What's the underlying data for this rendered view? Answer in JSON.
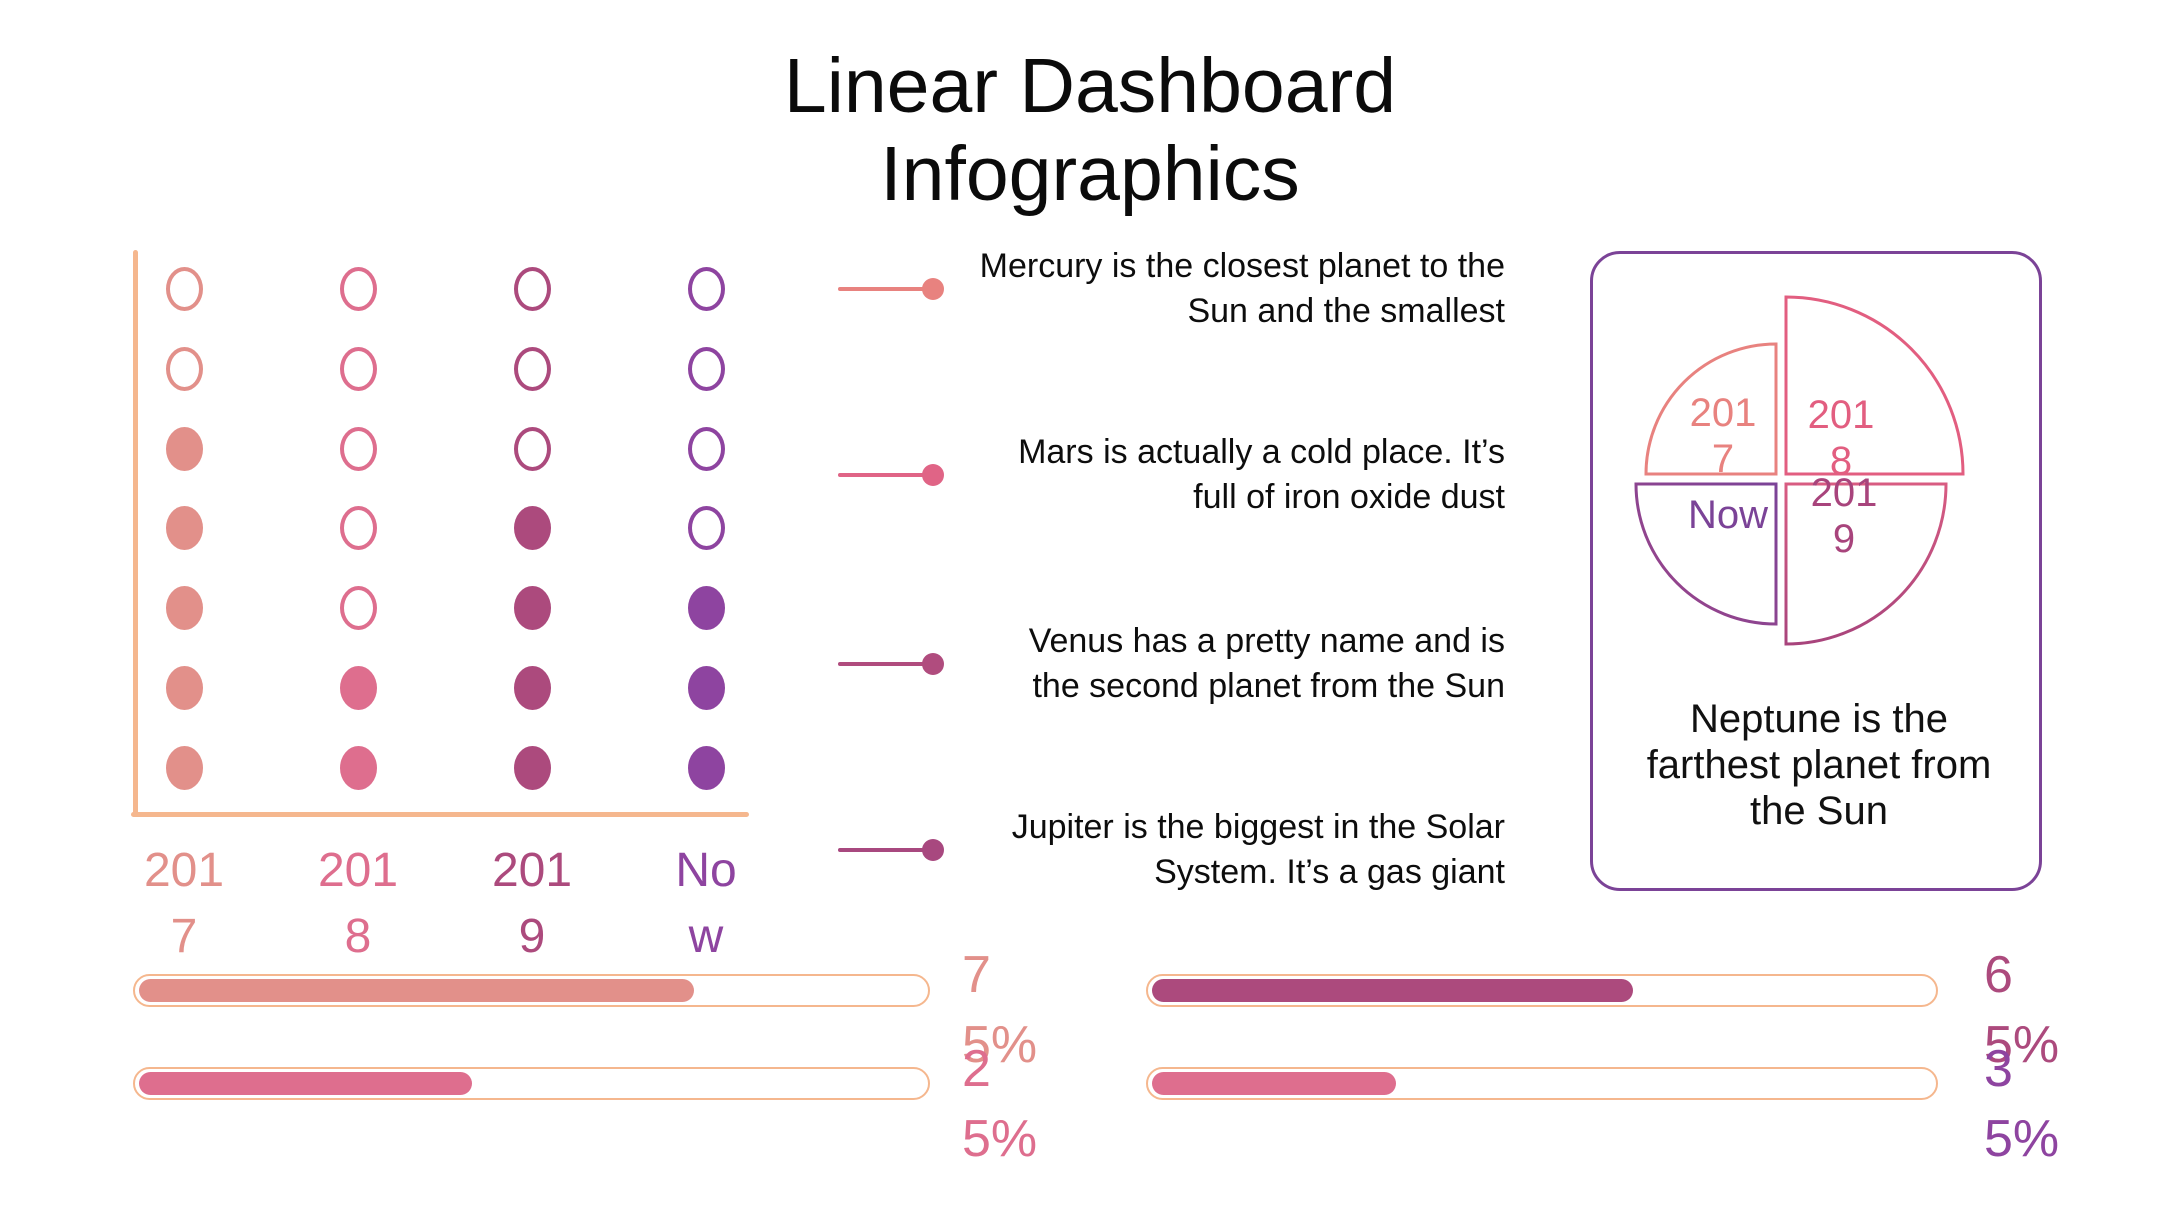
{
  "title": "Linear Dashboard Infographics",
  "colors": {
    "salmon": "#E2908A",
    "pink": "#DE6E8E",
    "magenta": "#AC4A7D",
    "purple": "#8E44A0",
    "peach_axis": "#F5B78E",
    "card_border": "#7B4397",
    "text": "#111111"
  },
  "chart_data": [
    {
      "type": "scatter",
      "subtype": "dot-matrix",
      "categories": [
        "2017",
        "2018",
        "2019",
        "Now"
      ],
      "values": [
        5,
        2,
        4,
        3
      ],
      "max_dots": 7,
      "filled_from_bottom": true,
      "pattern_top_to_bottom": [
        [
          0,
          0,
          1,
          1,
          1,
          1,
          1
        ],
        [
          0,
          0,
          0,
          0,
          0,
          1,
          1
        ],
        [
          0,
          0,
          0,
          1,
          1,
          1,
          1
        ],
        [
          0,
          0,
          0,
          0,
          1,
          1,
          1
        ]
      ],
      "column_colors": [
        "#E2908A",
        "#DE6E8E",
        "#AC4A7D",
        "#8E44A0"
      ],
      "axis_color": "#F5B78E",
      "grid": false
    },
    {
      "type": "pie",
      "subtype": "quadrant-radial",
      "labels": [
        "2017",
        "2018",
        "2019",
        "Now"
      ],
      "slice_angles_deg": [
        90,
        90,
        90,
        90
      ],
      "relative_radii": [
        130,
        177,
        160,
        140
      ],
      "slice_colors": [
        "#E8827F",
        "#E25E80",
        "#A8447C",
        "#7B4397"
      ],
      "caption": "Neptune is the farthest planet from the Sun"
    },
    {
      "type": "bar",
      "subtype": "progress",
      "series": [
        {
          "group": "left",
          "label": "75%",
          "value": 75,
          "color": "#E2908A"
        },
        {
          "group": "left",
          "label": "25%",
          "value": 25,
          "color": "#DE6E8E"
        },
        {
          "group": "right",
          "label": "65%",
          "value": 65,
          "color": "#AC4A7D"
        },
        {
          "group": "right",
          "label": "35%",
          "value": 35,
          "color": "#DE6E8E"
        }
      ],
      "track_outline_color": "#F5B78E"
    }
  ],
  "legend": {
    "items": [
      {
        "text": "Mercury is the closest planet to the Sun and the smallest",
        "color": "#E8827F"
      },
      {
        "text": "Mars is actually a cold place. It’s full of iron oxide dust",
        "color": "#E06486"
      },
      {
        "text": "Venus has a pretty name and is the second planet from the Sun",
        "color": "#B04C7E"
      },
      {
        "text": "Jupiter is the biggest in the Solar System. It’s a gas giant",
        "color": "#A8487F"
      }
    ]
  },
  "bars": {
    "fills": [
      "70%",
      "42%",
      "61%",
      "31%"
    ]
  }
}
